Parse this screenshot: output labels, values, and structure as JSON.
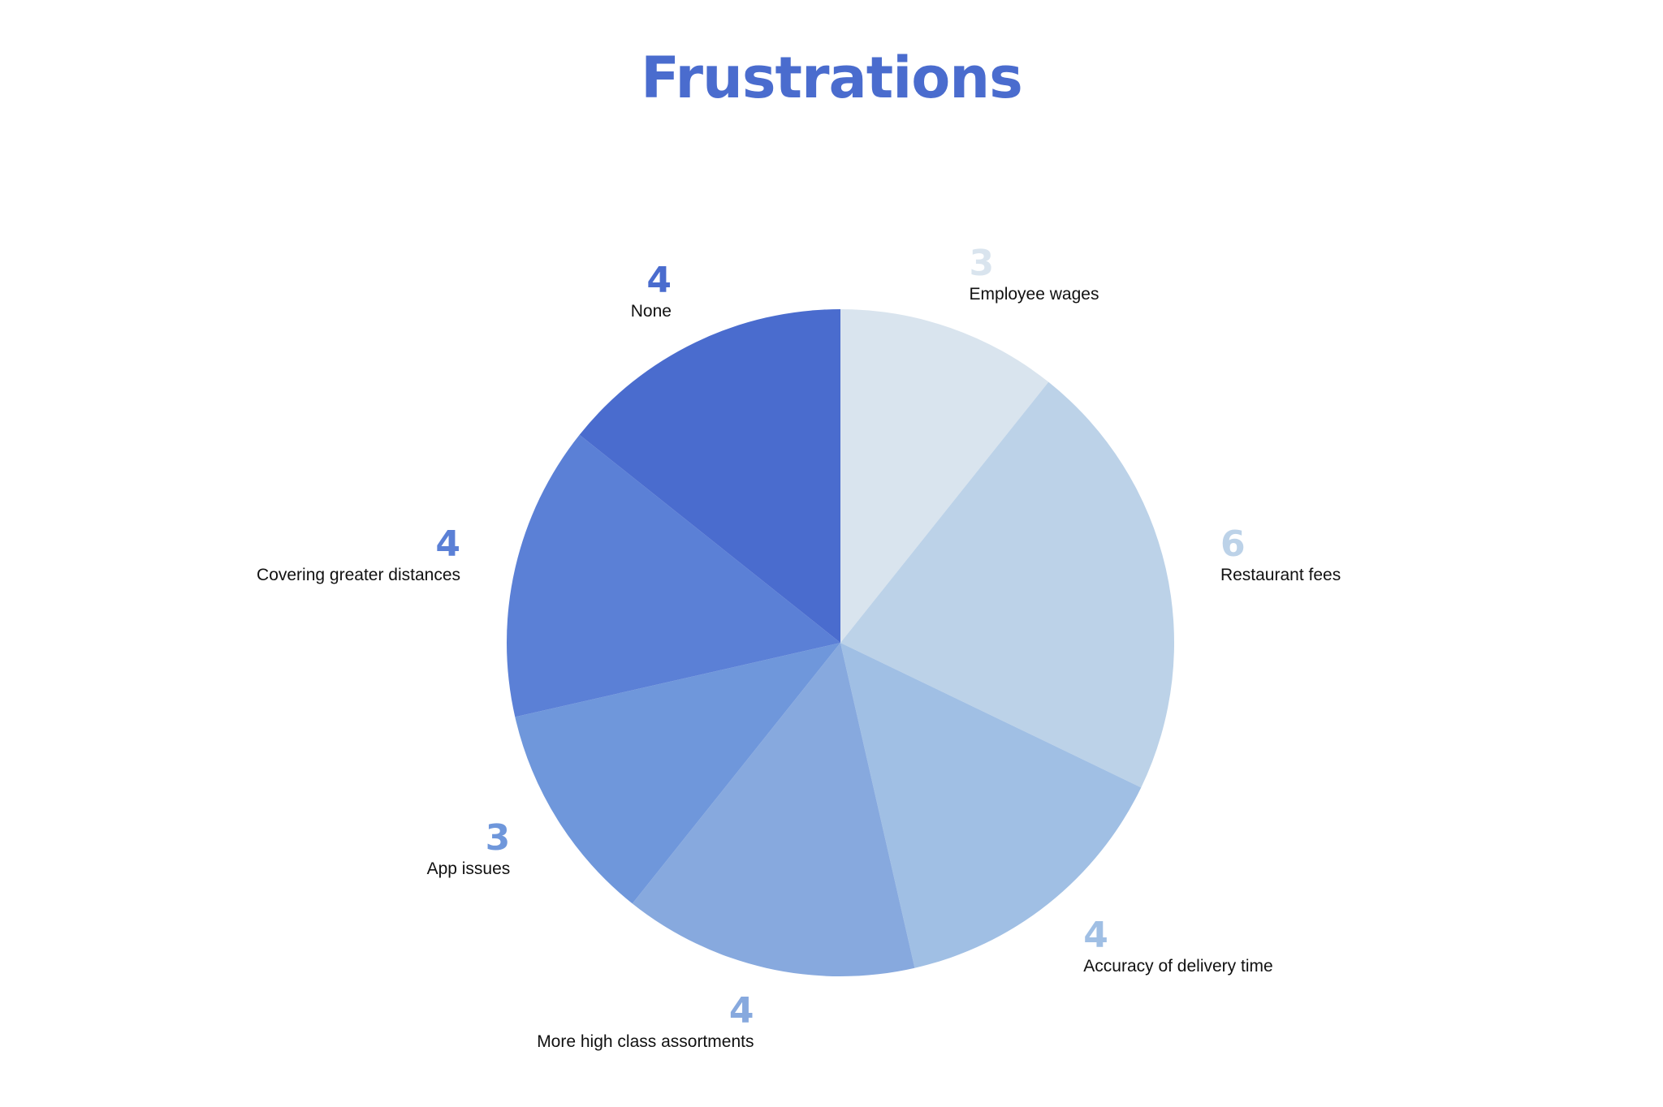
{
  "chart_data": {
    "type": "pie",
    "title": "Frustrations",
    "slices": [
      {
        "label": "Employee wages",
        "value": 3,
        "color": "#D9E4EE"
      },
      {
        "label": "Restaurant fees",
        "value": 6,
        "color": "#BCD2E8"
      },
      {
        "label": "Accuracy of delivery time",
        "value": 4,
        "color": "#A0BFE4"
      },
      {
        "label": "More high class assortments",
        "value": 4,
        "color": "#87A9DE"
      },
      {
        "label": "App issues",
        "value": 3,
        "color": "#6F97DB"
      },
      {
        "label": "Covering greater distances",
        "value": 4,
        "color": "#5B80D6"
      },
      {
        "label": "None",
        "value": 4,
        "color": "#4A6CCE"
      }
    ],
    "start_angle": "12 o'clock",
    "direction": "clockwise",
    "legend": "none"
  },
  "colors": {
    "title": "#4A6CCE",
    "label_text": "#111111",
    "background": "#FFFFFF"
  }
}
